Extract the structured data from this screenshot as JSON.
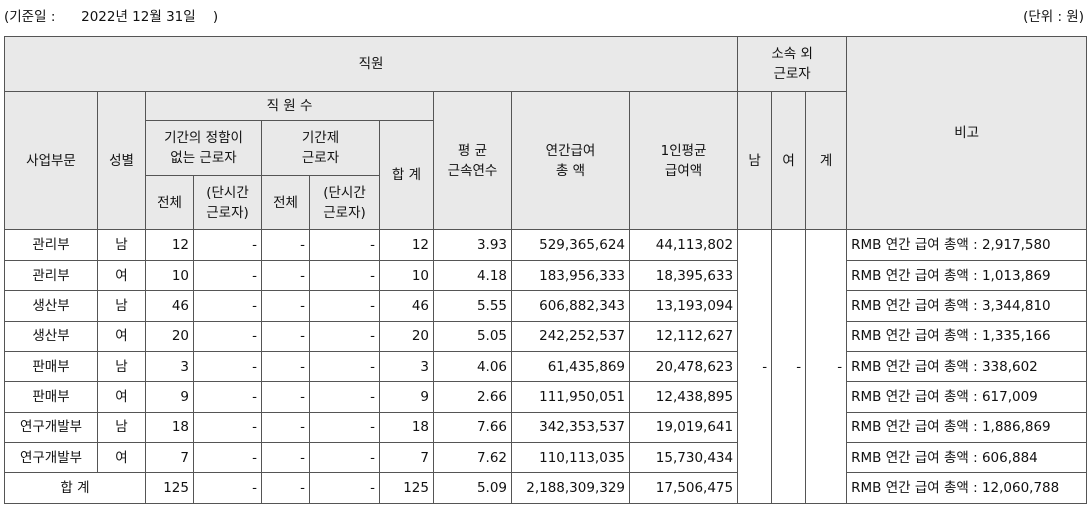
{
  "base_date_label": "(기준일 :      2022년 12월 31일    )",
  "unit_label": "(단위 : 원)",
  "headers": {
    "employees": "직원",
    "non_affiliated_l1": "소속 외",
    "non_affiliated_l2": "근로자",
    "remarks": "비고",
    "division": "사업부문",
    "gender": "성별",
    "headcount": "직 원 수",
    "permanent_l1": "기간의 정함이",
    "permanent_l2": "없는 근로자",
    "fixed_term_l1": "기간제",
    "fixed_term_l2": "근로자",
    "subtotal": "합 계",
    "tenure_l1": "평 균",
    "tenure_l2": "근속연수",
    "total_pay_l1": "연간급여",
    "total_pay_l2": "총 액",
    "avg_pay_l1": "1인평균",
    "avg_pay_l2": "급여액",
    "male": "남",
    "female": "여",
    "na_total": "계",
    "all": "전체",
    "part_time_l1": "(단시간",
    "part_time_l2": "근로자)"
  },
  "rows": [
    {
      "division": "관리부",
      "gender": "남",
      "perm_all": "12",
      "perm_part": "-",
      "fixed_all": "-",
      "fixed_part": "-",
      "total": "12",
      "tenure": "3.93",
      "total_pay": "529,365,624",
      "avg_pay": "44,113,802",
      "remark": "RMB 연간 급여 총액 : 2,917,580"
    },
    {
      "division": "관리부",
      "gender": "여",
      "perm_all": "10",
      "perm_part": "-",
      "fixed_all": "-",
      "fixed_part": "-",
      "total": "10",
      "tenure": "4.18",
      "total_pay": "183,956,333",
      "avg_pay": "18,395,633",
      "remark": "RMB 연간 급여 총액 : 1,013,869"
    },
    {
      "division": "생산부",
      "gender": "남",
      "perm_all": "46",
      "perm_part": "-",
      "fixed_all": "-",
      "fixed_part": "-",
      "total": "46",
      "tenure": "5.55",
      "total_pay": "606,882,343",
      "avg_pay": "13,193,094",
      "remark": "RMB 연간 급여 총액 : 3,344,810"
    },
    {
      "division": "생산부",
      "gender": "여",
      "perm_all": "20",
      "perm_part": "-",
      "fixed_all": "-",
      "fixed_part": "-",
      "total": "20",
      "tenure": "5.05",
      "total_pay": "242,252,537",
      "avg_pay": "12,112,627",
      "remark": "RMB 연간 급여 총액 : 1,335,166"
    },
    {
      "division": "판매부",
      "gender": "남",
      "perm_all": "3",
      "perm_part": "-",
      "fixed_all": "-",
      "fixed_part": "-",
      "total": "3",
      "tenure": "4.06",
      "total_pay": "61,435,869",
      "avg_pay": "20,478,623",
      "remark": "RMB 연간 급여 총액 : 338,602"
    },
    {
      "division": "판매부",
      "gender": "여",
      "perm_all": "9",
      "perm_part": "-",
      "fixed_all": "-",
      "fixed_part": "-",
      "total": "9",
      "tenure": "2.66",
      "total_pay": "111,950,051",
      "avg_pay": "12,438,895",
      "remark": "RMB 연간 급여 총액 : 617,009"
    },
    {
      "division": "연구개발부",
      "gender": "남",
      "perm_all": "18",
      "perm_part": "-",
      "fixed_all": "-",
      "fixed_part": "-",
      "total": "18",
      "tenure": "7.66",
      "total_pay": "342,353,537",
      "avg_pay": "19,019,641",
      "remark": "RMB 연간 급여 총액 : 1,886,869"
    },
    {
      "division": "연구개발부",
      "gender": "여",
      "perm_all": "7",
      "perm_part": "-",
      "fixed_all": "-",
      "fixed_part": "-",
      "total": "7",
      "tenure": "7.62",
      "total_pay": "110,113,035",
      "avg_pay": "15,730,434",
      "remark": "RMB 연간 급여 총액 : 606,884"
    }
  ],
  "total_row": {
    "label": "합 계",
    "perm_all": "125",
    "perm_part": "-",
    "fixed_all": "-",
    "fixed_part": "-",
    "total": "125",
    "tenure": "5.09",
    "total_pay": "2,188,309,329",
    "avg_pay": "17,506,475",
    "remark": "RMB 연간 급여 총액 : 12,060,788"
  },
  "non_affiliated": {
    "male": "-",
    "female": "-",
    "total": "-"
  }
}
